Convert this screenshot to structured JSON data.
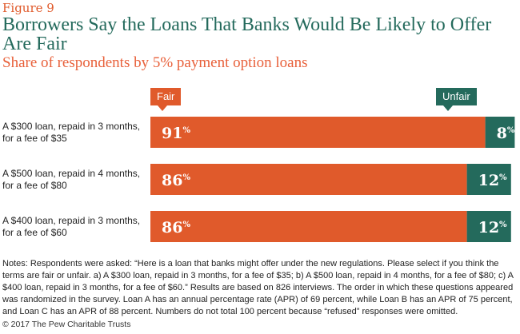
{
  "figure_label": "Figure 9",
  "chart_data": {
    "type": "bar",
    "orientation": "horizontal",
    "stacked": true,
    "title": "Borrowers Say the Loans That Banks Would Be Likely to Offer Are Fair",
    "subtitle": "Share of respondents by 5% payment option loans",
    "categories": [
      "A $300 loan, repaid in 3 months, for a fee of $35",
      "A $500 loan, repaid in 4 months, for a fee of $80",
      "A $400 loan, repaid in 3 months, for a fee of $60"
    ],
    "series": [
      {
        "name": "Fair",
        "values": [
          91,
          86,
          86
        ],
        "color": "#e05a2b"
      },
      {
        "name": "Unfair",
        "values": [
          8,
          12,
          12
        ],
        "color": "#246a5c"
      }
    ],
    "value_suffix": "%",
    "xlim": [
      0,
      100
    ],
    "grid": false,
    "legend": "top"
  },
  "notes": "Notes: Respondents were asked: “Here is a loan that banks might offer under the new regulations. Please select if you think the terms are fair or unfair. a) A $300 loan, repaid in 3 months, for a fee of $35; b) A $500 loan, repaid in 4 months, for a fee of $80; c) A $400 loan, repaid in 3 months, for a fee of $60.” Results are based on 826 interviews. The order in which these questions appeared was randomized in the survey. Loan A has an annual percentage rate (APR) of 69 percent, while Loan B has an APR of 75 percent, and Loan C has an APR of 88 percent. Numbers do not total 100 percent because “refused” responses were omitted.",
  "footer": "© 2017 The Pew Charitable Trusts"
}
